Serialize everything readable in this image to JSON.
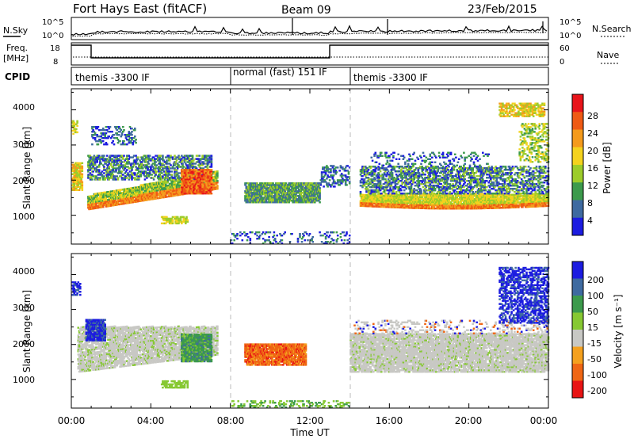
{
  "header": {
    "station": "Fort Hays East (fitACF)",
    "beam": "Beam 09",
    "date": "23/Feb/2015"
  },
  "noise_panel": {
    "left_label": "N.Sky",
    "right_label": "N.Search",
    "left_ticks": [
      "10^5",
      "10^0"
    ],
    "right_ticks": [
      "10^5",
      "10^0"
    ]
  },
  "freq_panel": {
    "left_label_top": "Freq.",
    "left_label_bottom": "[MHz]",
    "left_ticks": [
      "18",
      "8"
    ],
    "right_label": "Nave",
    "right_ticks": [
      "60",
      "0"
    ]
  },
  "cpid_panel": {
    "label": "CPID",
    "segments": [
      {
        "text": "themis -3300 IF"
      },
      {
        "text": "normal (fast) 151 IF"
      },
      {
        "text": "themis -3300 IF"
      }
    ]
  },
  "power_panel": {
    "ylabel": "Slant Range [km]",
    "yticks": [
      "4000",
      "3000",
      "2000",
      "1000"
    ],
    "colorbar_label": "Power [dB]",
    "colorbar_ticks": [
      "28",
      "24",
      "20",
      "16",
      "12",
      "8",
      "4"
    ],
    "colorbar_colors": [
      "#e8141a",
      "#ef5a14",
      "#f49a1c",
      "#f4d21e",
      "#9ccc2a",
      "#3c9a4c",
      "#3e6aa0",
      "#1c1ce0"
    ]
  },
  "velocity_panel": {
    "ylabel": "Slant Range [km]",
    "yticks": [
      "4000",
      "3000",
      "2000",
      "1000"
    ],
    "colorbar_label": "Velocity [m s⁻¹]",
    "colorbar_ticks": [
      "200",
      "100",
      "50",
      "15",
      "-15",
      "-50",
      "-100",
      "-200"
    ],
    "colorbar_colors": [
      "#1c1ce0",
      "#3e6aa0",
      "#3c9a4c",
      "#86c832",
      "#c8c8c4",
      "#f4a01e",
      "#ef6614",
      "#e81414"
    ]
  },
  "xaxis": {
    "ticks": [
      "00:00",
      "04:00",
      "08:00",
      "12:00",
      "16:00",
      "20:00",
      "00:00"
    ],
    "label": "Time UT"
  },
  "chart_data": [
    {
      "type": "heatmap",
      "title": "Power",
      "xlabel": "Time UT",
      "ylabel": "Slant Range [km]",
      "xlim_hours": [
        0,
        24
      ],
      "ylim_km": [
        180,
        4600
      ],
      "colorbar": {
        "label": "Power [dB]",
        "ticks": [
          4,
          8,
          12,
          16,
          20,
          24,
          28
        ]
      },
      "features": [
        {
          "t_start": 0.8,
          "t_end": 7.3,
          "range_start_km": 1150,
          "range_end_km": 2000,
          "power_db_peak": 28
        },
        {
          "t_start": 8.7,
          "t_end": 12.5,
          "range_start_km": 1300,
          "range_end_km": 1900,
          "power_db_peak": 14
        },
        {
          "t_start": 14.5,
          "t_end": 24,
          "range_start_km": 1200,
          "range_end_km": 2000,
          "power_db_peak": 22
        }
      ]
    },
    {
      "type": "heatmap",
      "title": "Velocity",
      "xlabel": "Time UT",
      "ylabel": "Slant Range [km]",
      "xlim_hours": [
        0,
        24
      ],
      "ylim_km": [
        180,
        4600
      ],
      "colorbar": {
        "label": "Velocity [m s-1]",
        "ticks": [
          -200,
          -100,
          -50,
          -15,
          15,
          50,
          100,
          200
        ]
      },
      "features": [
        {
          "t_start": 0.7,
          "t_end": 1.7,
          "range_start_km": 2100,
          "range_end_km": 2700,
          "velocity_ms": 200
        },
        {
          "t_start": 5.5,
          "t_end": 7.0,
          "range_start_km": 1500,
          "range_end_km": 2300,
          "velocity_ms": 50
        },
        {
          "t_start": 8.7,
          "t_end": 11.8,
          "range_start_km": 1400,
          "range_end_km": 2000,
          "velocity_ms": -100
        },
        {
          "t_start": 21.5,
          "t_end": 24,
          "range_start_km": 2600,
          "range_end_km": 4200,
          "velocity_ms": 200
        }
      ]
    }
  ]
}
